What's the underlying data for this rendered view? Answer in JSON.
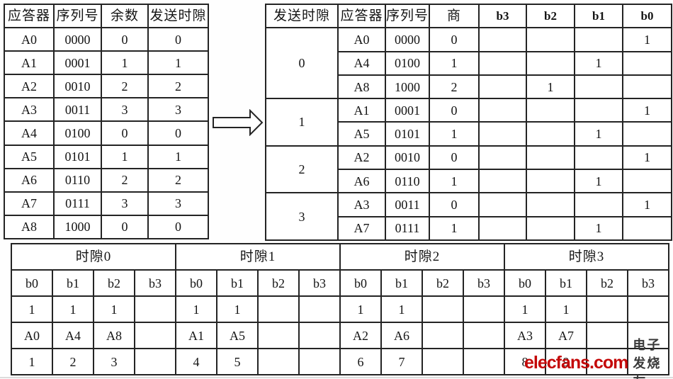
{
  "left_table": {
    "headers": [
      "应答器",
      "序列号",
      "余数",
      "发送时隙"
    ],
    "rows": [
      [
        "A0",
        "0000",
        "0",
        "0"
      ],
      [
        "A1",
        "0001",
        "1",
        "1"
      ],
      [
        "A2",
        "0010",
        "2",
        "2"
      ],
      [
        "A3",
        "0011",
        "3",
        "3"
      ],
      [
        "A4",
        "0100",
        "0",
        "0"
      ],
      [
        "A5",
        "0101",
        "1",
        "1"
      ],
      [
        "A6",
        "0110",
        "2",
        "2"
      ],
      [
        "A7",
        "0111",
        "3",
        "3"
      ],
      [
        "A8",
        "1000",
        "0",
        "0"
      ]
    ]
  },
  "right_table": {
    "headers": [
      "发送时隙",
      "应答器",
      "序列号",
      "商",
      "b3",
      "b2",
      "b1",
      "b0"
    ],
    "groups": [
      {
        "slot": "0",
        "rows": [
          {
            "transponder": "A0",
            "serial": "0000",
            "quotient": "0",
            "bits": [
              "",
              "",
              "",
              "1"
            ]
          },
          {
            "transponder": "A4",
            "serial": "0100",
            "quotient": "1",
            "bits": [
              "",
              "",
              "1",
              ""
            ]
          },
          {
            "transponder": "A8",
            "serial": "1000",
            "quotient": "2",
            "bits": [
              "",
              "1",
              "",
              ""
            ]
          }
        ]
      },
      {
        "slot": "1",
        "rows": [
          {
            "transponder": "A1",
            "serial": "0001",
            "quotient": "0",
            "bits": [
              "",
              "",
              "",
              "1"
            ]
          },
          {
            "transponder": "A5",
            "serial": "0101",
            "quotient": "1",
            "bits": [
              "",
              "",
              "1",
              ""
            ]
          }
        ]
      },
      {
        "slot": "2",
        "rows": [
          {
            "transponder": "A2",
            "serial": "0010",
            "quotient": "0",
            "bits": [
              "",
              "",
              "",
              "1"
            ]
          },
          {
            "transponder": "A6",
            "serial": "0110",
            "quotient": "1",
            "bits": [
              "",
              "",
              "1",
              ""
            ]
          }
        ]
      },
      {
        "slot": "3",
        "rows": [
          {
            "transponder": "A3",
            "serial": "0011",
            "quotient": "0",
            "bits": [
              "",
              "",
              "",
              "1"
            ]
          },
          {
            "transponder": "A7",
            "serial": "0111",
            "quotient": "1",
            "bits": [
              "",
              "",
              "1",
              ""
            ]
          }
        ]
      }
    ]
  },
  "bottom_table": {
    "groups": [
      {
        "label": "时隙0",
        "bit_headers": [
          "b0",
          "b1",
          "b2",
          "b3"
        ],
        "flags": [
          "1",
          "1",
          "1",
          ""
        ],
        "transponders": [
          "A0",
          "A4",
          "A8",
          ""
        ],
        "order": [
          "1",
          "2",
          "3",
          ""
        ]
      },
      {
        "label": "时隙1",
        "bit_headers": [
          "b0",
          "b1",
          "b2",
          "b3"
        ],
        "flags": [
          "1",
          "1",
          "",
          ""
        ],
        "transponders": [
          "A1",
          "A5",
          "",
          ""
        ],
        "order": [
          "4",
          "5",
          "",
          ""
        ]
      },
      {
        "label": "时隙2",
        "bit_headers": [
          "b0",
          "b1",
          "b2",
          "b3"
        ],
        "flags": [
          "1",
          "1",
          "",
          ""
        ],
        "transponders": [
          "A2",
          "A6",
          "",
          ""
        ],
        "order": [
          "6",
          "7",
          "",
          ""
        ]
      },
      {
        "label": "时隙3",
        "bit_headers": [
          "b0",
          "b1",
          "b2",
          "b3"
        ],
        "flags": [
          "1",
          "1",
          "",
          ""
        ],
        "transponders": [
          "A3",
          "A7",
          "",
          ""
        ],
        "order": [
          "8",
          "9",
          "",
          ""
        ]
      }
    ]
  },
  "watermark": {
    "brand": "elecfans.com",
    "brand_cn": "电子发烧友",
    "brand_color": "#c40808"
  }
}
